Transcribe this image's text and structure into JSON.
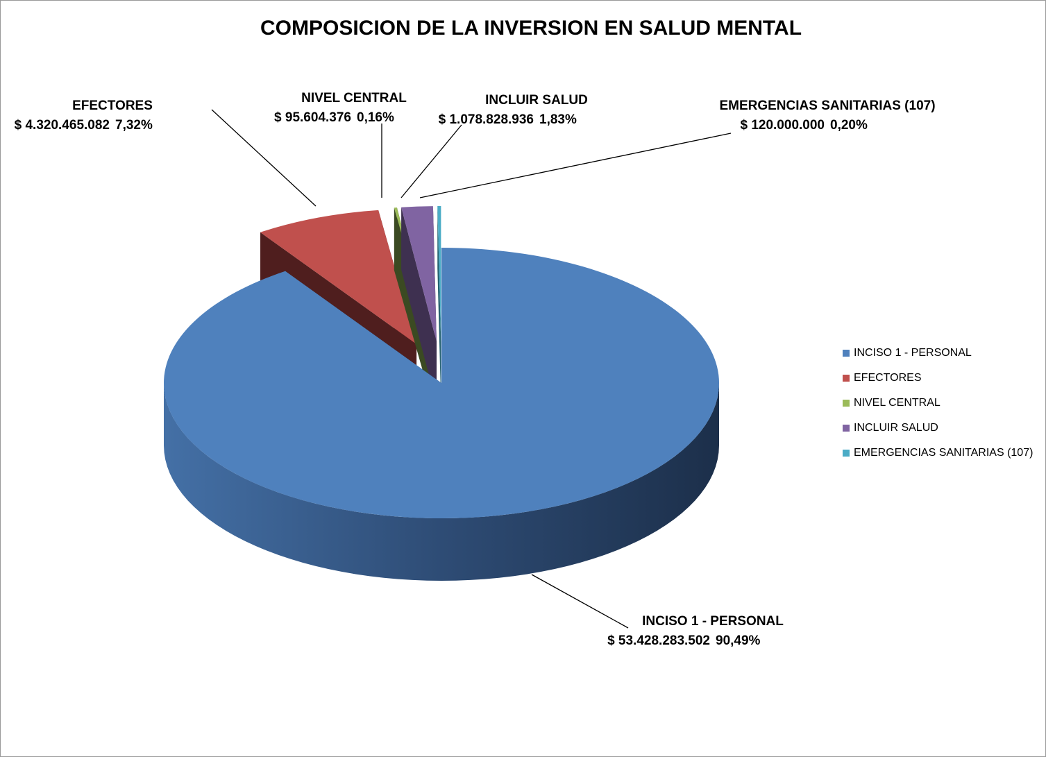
{
  "chart_data": {
    "type": "pie3d",
    "title": "COMPOSICION DE LA INVERSION EN SALUD MENTAL",
    "categories": [
      "INCISO 1 - PERSONAL",
      "EFECTORES",
      "NIVEL CENTRAL",
      "INCLUIR SALUD",
      "EMERGENCIAS SANITARIAS (107)"
    ],
    "values": [
      53428283502,
      4320465082,
      95604376,
      1078828936,
      120000000
    ],
    "value_labels": [
      "$ 53.428.283.502",
      "$ 4.320.465.082",
      "$ 95.604.376",
      "$ 1.078.828.936",
      "$ 120.000.000"
    ],
    "percent_labels": [
      "90,49%",
      "7,32%",
      "0,16%",
      "1,83%",
      "0,20%"
    ],
    "colors": [
      "#4f81bd",
      "#c0504d",
      "#9bbb59",
      "#8064a2",
      "#4bacc6"
    ],
    "legend": "right"
  }
}
